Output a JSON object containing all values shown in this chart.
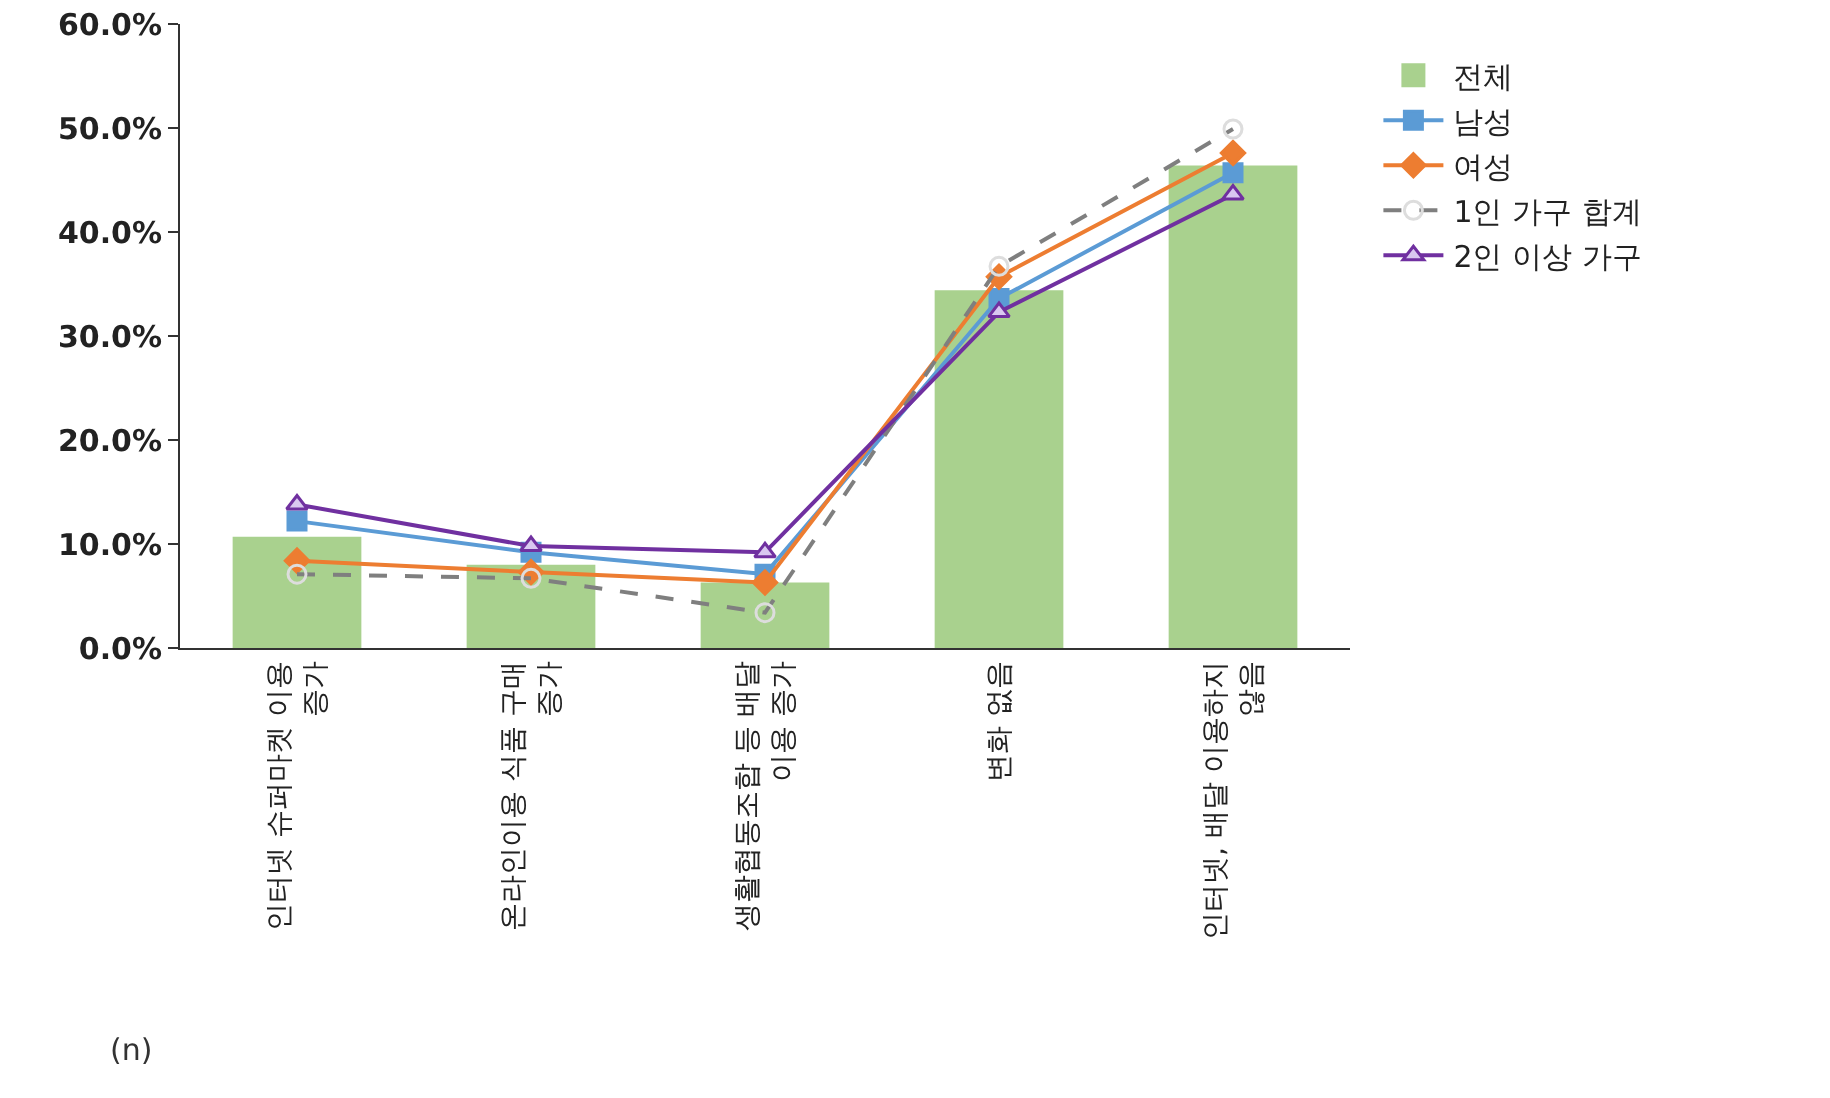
{
  "chart_data": {
    "type": "bar",
    "categories": [
      "인터넷 슈퍼마켓 이용 증가",
      "온라인이용 식품 구매 증가",
      "생활협동조합 등 배달 이용 증가",
      "변화 없음",
      "인터넷, 배달 이용하지 않음"
    ],
    "series": [
      {
        "name": "전체",
        "color": "#a9d18e",
        "values": [
          10.7,
          8.0,
          6.3,
          34.4,
          46.4
        ]
      },
      {
        "name": "남성",
        "type": "line",
        "color": "#5b9bd5",
        "marker": "square",
        "line_style": "solid",
        "values": [
          12.2,
          9.2,
          7.1,
          33.6,
          45.7
        ]
      },
      {
        "name": "여성",
        "type": "line",
        "color": "#ed7d31",
        "marker": "diamond",
        "line_style": "solid",
        "values": [
          8.4,
          7.3,
          6.3,
          35.7,
          47.6
        ]
      },
      {
        "name": "1인 가구 합계",
        "type": "line",
        "color": "#7f7f7f",
        "marker": "circle",
        "line_style": "dashed",
        "values": [
          7.1,
          6.7,
          3.4,
          36.7,
          49.9
        ]
      },
      {
        "name": "2인 이상 가구",
        "type": "line",
        "color": "#7030a0",
        "marker": "triangle",
        "line_style": "solid",
        "values": [
          13.8,
          9.8,
          9.2,
          32.3,
          43.6
        ]
      }
    ],
    "ylim": [
      0,
      60
    ],
    "yticks": [
      {
        "value": 0,
        "label": "0.0%"
      },
      {
        "value": 10,
        "label": "10.0%"
      },
      {
        "value": 20,
        "label": "20.0%"
      },
      {
        "value": 30,
        "label": "30.0%"
      },
      {
        "value": 40,
        "label": "40.0%"
      },
      {
        "value": 50,
        "label": "50.0%"
      },
      {
        "value": 60,
        "label": "60.0%"
      }
    ],
    "grid": false,
    "legend": "right",
    "annotations": [
      "(n)"
    ]
  }
}
